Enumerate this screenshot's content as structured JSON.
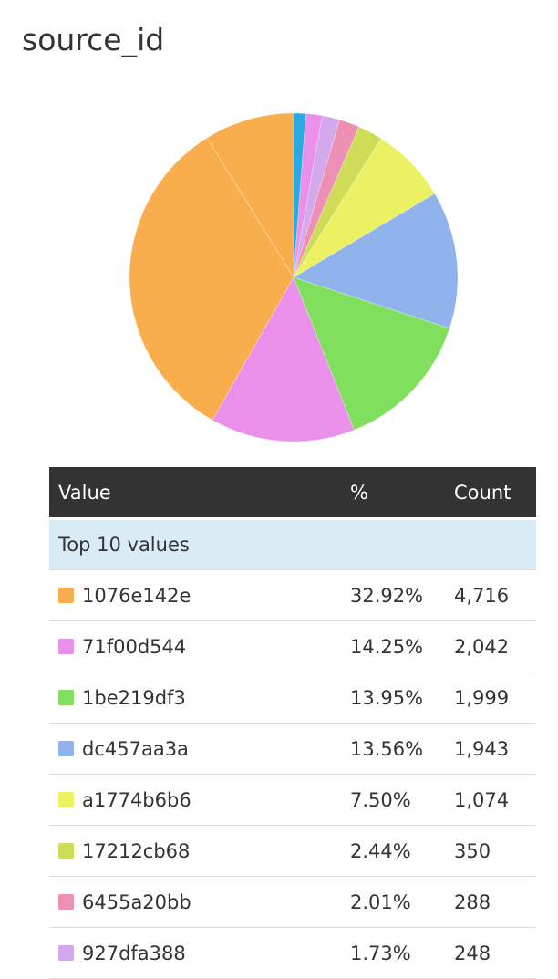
{
  "title": "source_id",
  "table": {
    "headers": {
      "value": "Value",
      "percent": "%",
      "count": "Count"
    },
    "group_label": "Top 10 values",
    "rows": [
      {
        "value": "1076e142e",
        "percent": "32.92%",
        "count": "4,716",
        "color": "#f9ae4e"
      },
      {
        "value": "71f00d544",
        "percent": "14.25%",
        "count": "2,042",
        "color": "#ea8fea"
      },
      {
        "value": "1be219df3",
        "percent": "13.95%",
        "count": "1,999",
        "color": "#80e05e"
      },
      {
        "value": "dc457aa3a",
        "percent": "13.56%",
        "count": "1,943",
        "color": "#8fb3ea"
      },
      {
        "value": "a1774b6b6",
        "percent": "7.50%",
        "count": "1,074",
        "color": "#ecf063"
      },
      {
        "value": "17212cb68",
        "percent": "2.44%",
        "count": "350",
        "color": "#cfdc58"
      },
      {
        "value": "6455a20bb",
        "percent": "2.01%",
        "count": "288",
        "color": "#ee90b3"
      },
      {
        "value": "927dfa388",
        "percent": "1.73%",
        "count": "248",
        "color": "#d4a8ec"
      }
    ]
  },
  "chart_data": {
    "type": "pie",
    "title": "source_id",
    "start_angle_deg": 0,
    "direction": "clockwise",
    "slices": [
      {
        "label": "",
        "percent": 1.2,
        "color": "#29abe2"
      },
      {
        "label": "",
        "percent": 1.6,
        "color": "#ea8fea"
      },
      {
        "label": "",
        "percent": 1.73,
        "color": "#d4a8ec"
      },
      {
        "label": "",
        "percent": 2.01,
        "color": "#ee90b3"
      },
      {
        "label": "",
        "percent": 2.44,
        "color": "#cfdc58"
      },
      {
        "label": "",
        "percent": 7.5,
        "color": "#ecf063"
      },
      {
        "label": "dc457aa3a",
        "percent": 13.56,
        "color": "#8fb3ea"
      },
      {
        "label": "1be219df3",
        "percent": 13.95,
        "color": "#80e05e"
      },
      {
        "label": "71f00d544",
        "percent": 14.25,
        "color": "#ea8fea"
      },
      {
        "label": "1076e142e",
        "percent": 32.92,
        "color": "#f9ae4e"
      },
      {
        "label": "",
        "percent": 8.84,
        "color": "#f9ae4e"
      }
    ]
  }
}
